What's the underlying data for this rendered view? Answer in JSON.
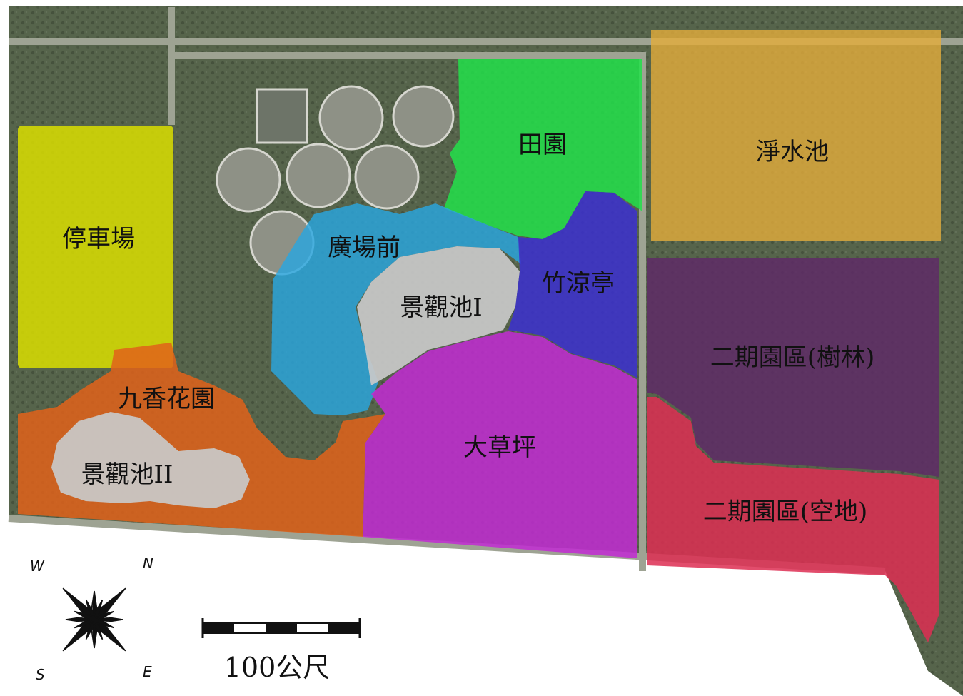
{
  "map": {
    "colors": {
      "ground": "#55634a",
      "road": "#9aa090",
      "parking": "#d9de00",
      "fields": "#22e04a",
      "pond_purify": "#e3ad3b",
      "plaza": "#29a6df",
      "scenic_pond": "#c9c9c9",
      "bamboo": "#3b2fd0",
      "lawn": "#c22ad3",
      "garden": "#e0621a",
      "phase2_forest": "#5e2a66",
      "phase2_vacant": "#dd2e52"
    },
    "zones": {
      "parking": "停車場",
      "fields": "田園",
      "purify_pond": "淨水池",
      "plaza_front": "廣場前",
      "scenic_pond_1": "景觀池I",
      "bamboo_pavilion": "竹涼亭",
      "phase2_forest": "二期園區(樹林)",
      "garden": "九香花園",
      "scenic_pond_2": "景觀池II",
      "big_lawn": "大草坪",
      "phase2_vacant": "二期園區(空地)"
    }
  },
  "compass": {
    "n": "N",
    "e": "E",
    "s": "S",
    "w": "W"
  },
  "scale_bar": {
    "label": "100公尺"
  }
}
